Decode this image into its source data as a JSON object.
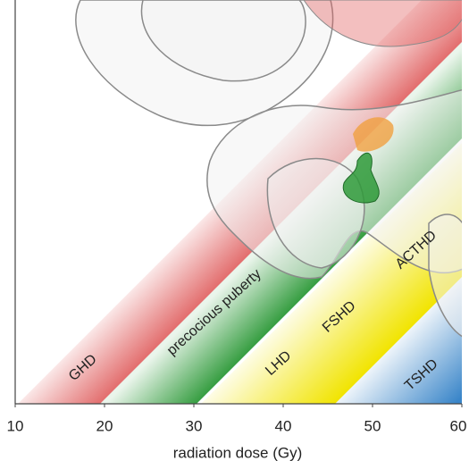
{
  "chart_data": {
    "type": "band",
    "xlabel": "radiation dose (Gy)",
    "xlim": [
      10,
      60
    ],
    "xticks": [
      10,
      20,
      30,
      40,
      50,
      60
    ],
    "annotations": [
      "GHD",
      "precocious puberty",
      "LHD",
      "FSHD",
      "ACTHD",
      "TSHD"
    ]
  }
}
